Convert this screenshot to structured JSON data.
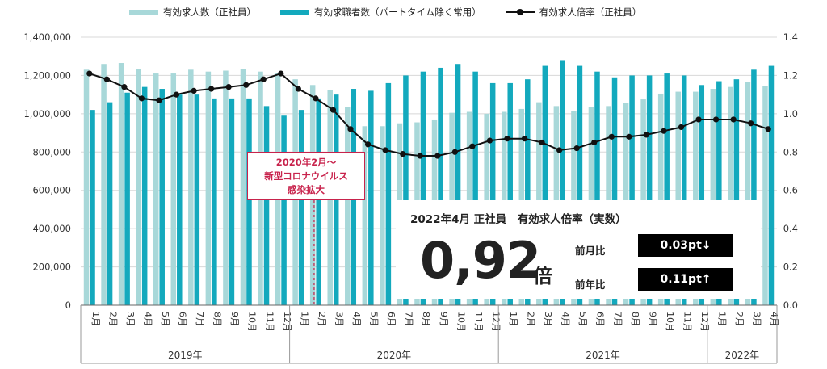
{
  "chart_data": {
    "type": "bar+line",
    "legend": [
      {
        "label": "有効求人数（正社員）",
        "color": "#a8d8d9",
        "kind": "bar"
      },
      {
        "label": "有効求職者数（パートタイム除く常用）",
        "color": "#13a9bd",
        "kind": "bar"
      },
      {
        "label": "有効求人倍率（正社員）",
        "color": "#111111",
        "kind": "line"
      }
    ],
    "categories": [
      "1月",
      "2月",
      "3月",
      "4月",
      "5月",
      "6月",
      "7月",
      "8月",
      "9月",
      "10月",
      "11月",
      "12月",
      "1月",
      "2月",
      "3月",
      "4月",
      "5月",
      "6月",
      "7月",
      "8月",
      "9月",
      "10月",
      "11月",
      "12月",
      "1月",
      "2月",
      "3月",
      "4月",
      "5月",
      "6月",
      "7月",
      "8月",
      "9月",
      "10月",
      "11月",
      "12月",
      "1月",
      "2月",
      "3月",
      "4月"
    ],
    "year_groups": [
      {
        "label": "2019年",
        "count": 12
      },
      {
        "label": "2020年",
        "count": 12
      },
      {
        "label": "2021年",
        "count": 12
      },
      {
        "label": "2022年",
        "count": 4
      }
    ],
    "series": [
      {
        "name": "有効求人数（正社員）",
        "axis": "left",
        "values": [
          1230000,
          1260000,
          1265000,
          1235000,
          1210000,
          1210000,
          1230000,
          1220000,
          1225000,
          1235000,
          1220000,
          1210000,
          1180000,
          1150000,
          1125000,
          1035000,
          935000,
          935000,
          950000,
          955000,
          970000,
          1005000,
          1010000,
          1000000,
          1010000,
          1025000,
          1060000,
          1040000,
          1015000,
          1035000,
          1040000,
          1055000,
          1075000,
          1105000,
          1115000,
          1115000,
          1130000,
          1140000,
          1165000,
          1145000
        ]
      },
      {
        "name": "有効求職者数（パートタイム除く常用）",
        "axis": "right",
        "values": [
          1.02,
          1.06,
          1.11,
          1.14,
          1.13,
          1.1,
          1.1,
          1.08,
          1.08,
          1.08,
          1.04,
          0.99,
          1.02,
          1.08,
          1.1,
          1.13,
          1.12,
          1.16,
          1.2,
          1.22,
          1.24,
          1.26,
          1.22,
          1.16,
          1.16,
          1.18,
          1.25,
          1.28,
          1.25,
          1.22,
          1.19,
          1.2,
          1.2,
          1.21,
          1.2,
          1.15,
          1.17,
          1.18,
          1.23,
          1.25
        ]
      },
      {
        "name": "有効求人倍率（正社員）",
        "axis": "right",
        "values": [
          1.21,
          1.18,
          1.14,
          1.08,
          1.07,
          1.1,
          1.12,
          1.13,
          1.14,
          1.15,
          1.18,
          1.21,
          1.13,
          1.08,
          1.02,
          0.92,
          0.84,
          0.81,
          0.79,
          0.78,
          0.78,
          0.8,
          0.83,
          0.86,
          0.87,
          0.87,
          0.85,
          0.81,
          0.82,
          0.85,
          0.88,
          0.88,
          0.89,
          0.91,
          0.93,
          0.97,
          0.97,
          0.97,
          0.95,
          0.92
        ]
      }
    ],
    "left_axis": {
      "ylim": [
        0,
        1400000
      ],
      "ticks": [
        "0",
        "200,000",
        "400,000",
        "600,000",
        "800,000",
        "1,000,000",
        "1,200,000",
        "1,400,000"
      ]
    },
    "right_axis": {
      "ylim": [
        0,
        1.4
      ],
      "ticks": [
        "0.0",
        "0.2",
        "0.4",
        "0.6",
        "0.8",
        "1.0",
        "1.2",
        "1.4"
      ]
    },
    "grid": true
  },
  "callout": {
    "line1": "2020年2月～",
    "line2": "新型コロナウイルス",
    "line3": "感染拡大"
  },
  "info": {
    "title": "2022年4月 正社員　有効求人倍率（実数）",
    "big_value": "0,92",
    "big_unit": "倍",
    "mom_label": "前月比",
    "mom_value": "0.03pt↓",
    "yoy_label": "前年比",
    "yoy_value": "0.11pt↑"
  }
}
